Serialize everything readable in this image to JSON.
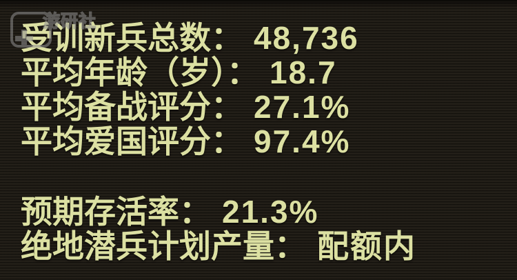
{
  "watermark": {
    "text": "游研社"
  },
  "stats": {
    "group1": [
      {
        "label": "受训新兵总数：",
        "value": "48,736"
      },
      {
        "label": "平均年龄（岁）：",
        "value": "18.7"
      },
      {
        "label": "平均备战评分：",
        "value": "27.1%"
      },
      {
        "label": "平均爱国评分：",
        "value": "97.4%"
      }
    ],
    "group2": [
      {
        "label": "预期存活率：",
        "value": "21.3%"
      },
      {
        "label": "绝地潜兵计划产量：",
        "value": "配额内"
      }
    ]
  },
  "colors": {
    "background": "#221e17",
    "text": "#dce0a2",
    "watermark": "#909090"
  }
}
